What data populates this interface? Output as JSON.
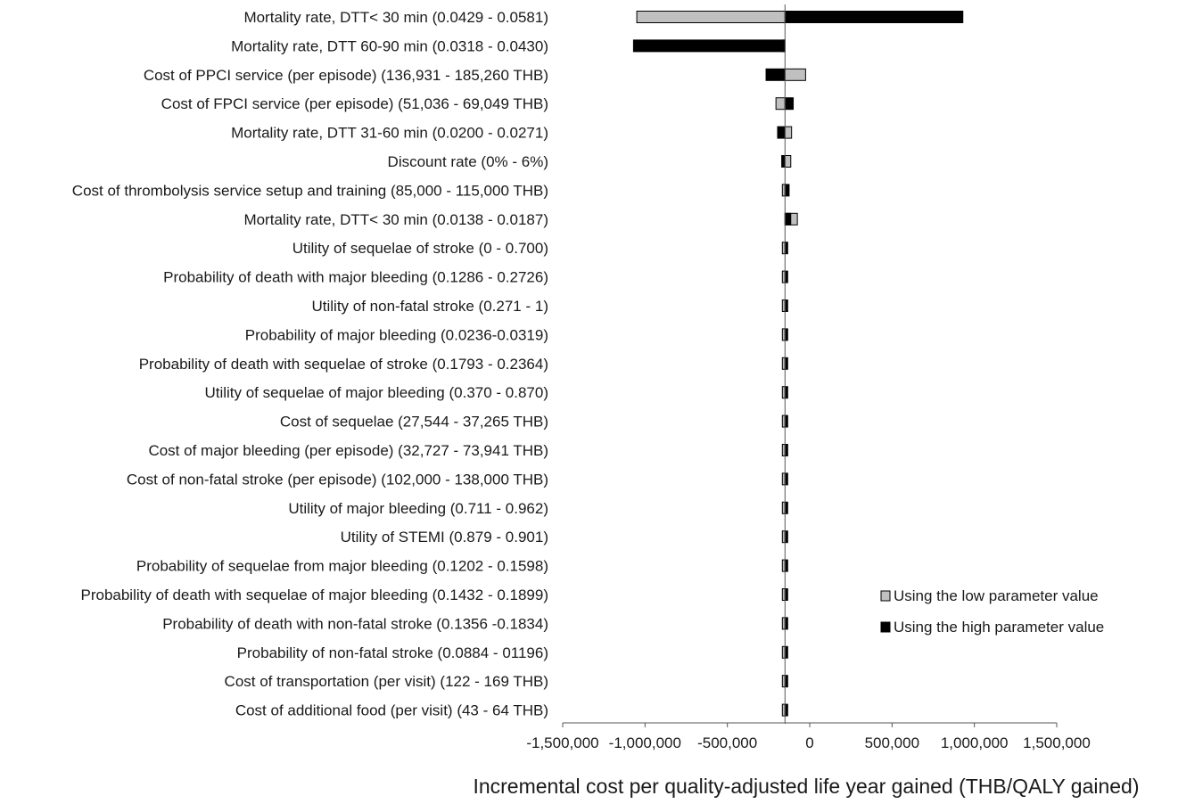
{
  "chart_data": {
    "type": "bar",
    "orientation": "horizontal",
    "style": "tornado",
    "baseline": -150000,
    "xlim": [
      -1500000,
      1500000
    ],
    "xticks": [
      -1500000,
      -1000000,
      -500000,
      0,
      500000,
      1000000,
      1500000
    ],
    "xtick_labels": [
      "-1,500,000",
      "-1,000,000",
      "-500,000",
      "0",
      "500,000",
      "1,000,000",
      "1,500,000"
    ],
    "xlabel": "Incremental cost per quality-adjusted life year gained (THB/QALY gained)",
    "ylabel": "",
    "title": "",
    "legend_position": "right",
    "colors": {
      "low": "#c0c0c0",
      "high": "#000000"
    },
    "categories": [
      "Mortality rate, DTT< 30 min (0.0429 - 0.0581)",
      "Mortality rate, DTT 60-90 min (0.0318 - 0.0430)",
      "Cost of PPCI service (per episode) (136,931 - 185,260 THB)",
      "Cost of FPCI service (per episode) (51,036 - 69,049 THB)",
      "Mortality rate, DTT 31-60 min (0.0200 - 0.0271)",
      "Discount rate (0% - 6%)",
      "Cost of thrombolysis service setup and training (85,000 - 115,000 THB)",
      "Mortality rate, DTT< 30 min (0.0138 - 0.0187)",
      "Utility of sequelae of stroke (0 - 0.700)",
      "Probability of death with major bleeding (0.1286 - 0.2726)",
      "Utility of non-fatal stroke (0.271 - 1)",
      "Probability of major bleeding (0.0236-0.0319)",
      "Probability of death with sequelae of stroke (0.1793 - 0.2364)",
      "Utility of sequelae of major bleeding (0.370 - 0.870)",
      "Cost of sequelae (27,544 - 37,265 THB)",
      "Cost of major bleeding (per episode) (32,727 - 73,941 THB)",
      "Cost of non-fatal stroke (per episode) (102,000 - 138,000 THB)",
      "Utility of major bleeding (0.711 - 0.962)",
      "Utility of STEMI  (0.879 - 0.901)",
      "Probability of sequelae from major bleeding (0.1202 - 0.1598)",
      "Probability of death with sequelae of major bleeding (0.1432 - 0.1899)",
      "Probability of death with non-fatal stroke (0.1356 -0.1834)",
      "Probability of non-fatal stroke (0.0884 - 01196)",
      "Cost of transportation (per visit) (122 - 169 THB)",
      "Cost of additional food (per visit) (43 - 64 THB)"
    ],
    "series": [
      {
        "name": "Using the low parameter value",
        "values": [
          -1050000,
          -150000,
          -25000,
          -205000,
          -110000,
          -115000,
          -165000,
          -75000,
          -160000,
          -155000,
          -155000,
          -155000,
          -155000,
          -155000,
          -155000,
          -155000,
          -155000,
          -155000,
          -155000,
          -155000,
          -155000,
          -155000,
          -150000,
          -155000,
          -155000
        ]
      },
      {
        "name": "Using the high parameter value",
        "values": [
          930000,
          -1070000,
          -265000,
          -100000,
          -195000,
          -170000,
          -125000,
          -115000,
          -140000,
          -145000,
          -145000,
          -145000,
          -145000,
          -145000,
          -145000,
          -145000,
          -145000,
          -145000,
          -145000,
          -145000,
          -145000,
          -145000,
          -150000,
          -145000,
          -145000
        ]
      }
    ]
  }
}
